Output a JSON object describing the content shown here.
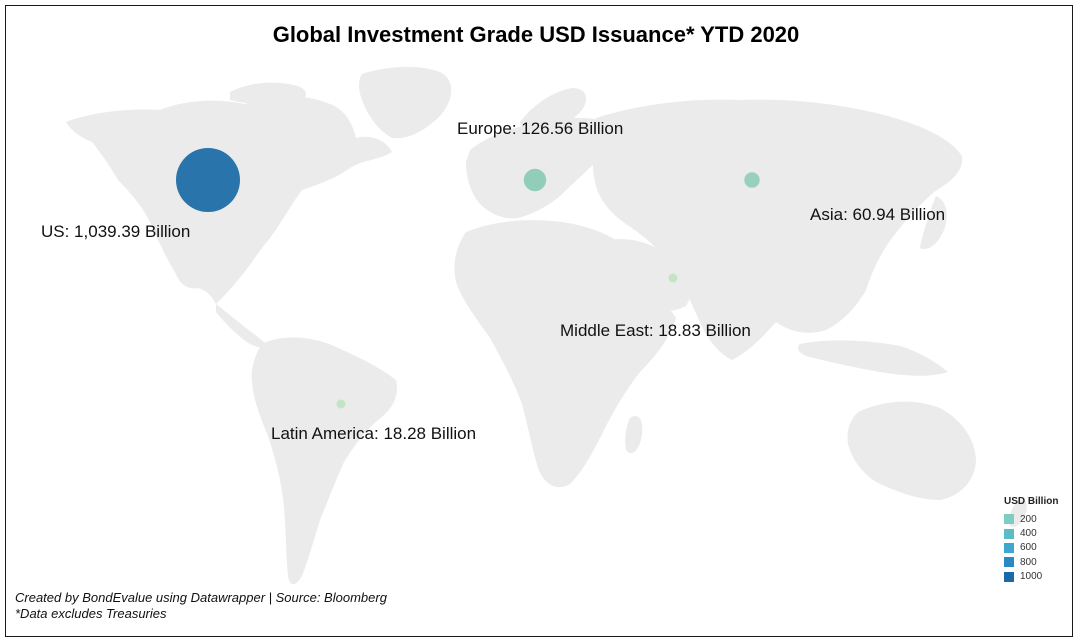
{
  "title": "Global Investment Grade USD Issuance* YTD 2020",
  "regions": [
    {
      "name": "US",
      "label": "US: 1,039.39 Billion",
      "value": 1039.39,
      "color": "#1f6fa8"
    },
    {
      "name": "Europe",
      "label": "Europe: 126.56 Billion",
      "value": 126.56,
      "color": "#8ccbb6"
    },
    {
      "name": "Asia",
      "label": "Asia: 60.94 Billion",
      "value": 60.94,
      "color": "#93cfba"
    },
    {
      "name": "Middle East",
      "label": "Middle East: 18.83 Billion",
      "value": 18.83,
      "color": "#c3e4c3"
    },
    {
      "name": "Latin America",
      "label": "Latin America: 18.28 Billion",
      "value": 18.28,
      "color": "#c3e4c3"
    }
  ],
  "legend": {
    "title": "USD Billion",
    "items": [
      {
        "label": "200",
        "color": "#7fcdc0"
      },
      {
        "label": "400",
        "color": "#5bbcc6"
      },
      {
        "label": "600",
        "color": "#3fa6cf"
      },
      {
        "label": "800",
        "color": "#2a89c4"
      },
      {
        "label": "1000",
        "color": "#1a6aa9"
      }
    ]
  },
  "footer": {
    "line1": "Created by BondEvalue using Datawrapper | Source: Bloomberg",
    "line2": "*Data excludes Treasuries"
  }
}
